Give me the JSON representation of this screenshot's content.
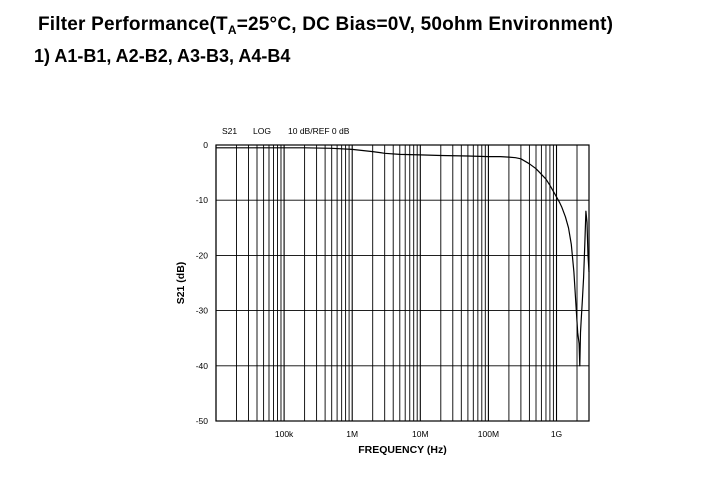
{
  "heading": {
    "prefix": "Filter Performance(T",
    "subscript": "A",
    "suffix": "=25°C, DC Bias=0V, 50ohm Environment)"
  },
  "subheading": "1) A1-B1, A2-B2, A3-B3, A4-B4",
  "chart_data": {
    "type": "line",
    "header": {
      "param": "S21",
      "format": "LOG",
      "scale": "10 dB/REF 0 dB"
    },
    "xlabel": "FREQUENCY (Hz)",
    "ylabel": "S21 (dB)",
    "xscale": "log",
    "xlim": [
      10000,
      3000000000
    ],
    "ylim": [
      -50,
      0
    ],
    "grid": true,
    "x_ticks": [
      {
        "value": 100000,
        "label": "100k"
      },
      {
        "value": 1000000,
        "label": "1M"
      },
      {
        "value": 10000000,
        "label": "10M"
      },
      {
        "value": 100000000,
        "label": "100M"
      },
      {
        "value": 1000000000,
        "label": "1G"
      }
    ],
    "y_ticks": [
      {
        "value": 0,
        "label": "0"
      },
      {
        "value": -10,
        "label": "-10"
      },
      {
        "value": -20,
        "label": "-20"
      },
      {
        "value": -30,
        "label": "-30"
      },
      {
        "value": -40,
        "label": "-40"
      },
      {
        "value": -50,
        "label": "-50"
      }
    ],
    "series": [
      {
        "color": "#000000",
        "x": [
          10000,
          20000,
          50000,
          100000,
          200000,
          500000,
          1000000,
          2000000,
          3000000,
          5000000,
          10000000,
          20000000,
          50000000,
          100000000,
          150000000,
          200000000,
          250000000,
          300000000,
          400000000,
          500000000,
          600000000,
          700000000,
          800000000,
          900000000,
          1000000000,
          1100000000,
          1200000000,
          1350000000,
          1500000000,
          1650000000,
          1800000000,
          1950000000,
          2050000000,
          2150000000,
          2200000000,
          2250000000,
          2300000000,
          2400000000,
          2500000000,
          2600000000,
          2700000000,
          2800000000,
          2900000000,
          3000000000
        ],
        "y": [
          -0.5,
          -0.5,
          -0.5,
          -0.5,
          -0.5,
          -0.6,
          -0.8,
          -1.2,
          -1.5,
          -1.7,
          -1.8,
          -1.9,
          -2.0,
          -2.1,
          -2.1,
          -2.2,
          -2.3,
          -2.5,
          -3.4,
          -4.3,
          -5.3,
          -6.2,
          -7.3,
          -8.4,
          -9.4,
          -10.3,
          -11.3,
          -13.0,
          -15.0,
          -18.0,
          -23.0,
          -30.0,
          -34.0,
          -36.0,
          -40.0,
          -34.0,
          -32.0,
          -28.0,
          -24.0,
          -18.0,
          -12.0,
          -14.0,
          -20.0,
          -23.0
        ]
      }
    ]
  }
}
